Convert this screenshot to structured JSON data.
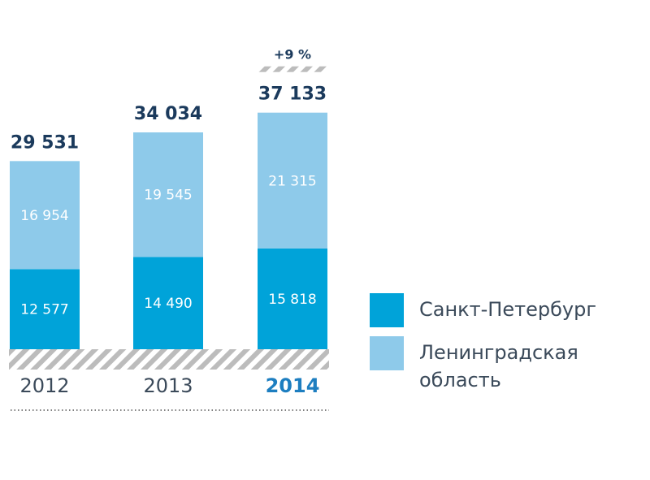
{
  "chart_data": {
    "type": "bar",
    "stacked": true,
    "categories": [
      "2012",
      "2013",
      "2014"
    ],
    "highlight_category": "2014",
    "series": [
      {
        "name": "Санкт-Петербург",
        "values": [
          12577,
          14490,
          15818
        ],
        "value_labels": [
          "12 577",
          "14 490",
          "15 818"
        ],
        "color": "#00a3d9"
      },
      {
        "name": "Ленинградская область",
        "values": [
          16954,
          19545,
          21315
        ],
        "value_labels": [
          "16 954",
          "19 545",
          "21 315"
        ],
        "color": "#8ecaea"
      }
    ],
    "totals": [
      29531,
      34034,
      37133
    ],
    "total_labels": [
      "29 531",
      "34 034",
      "37 133"
    ],
    "annotation": {
      "category": "2014",
      "text": "+9 %"
    },
    "legend": {
      "position": "right",
      "items": [
        {
          "lines": [
            "Санкт-Петербург"
          ],
          "color": "#00a3d9"
        },
        {
          "lines": [
            "Ленинградская",
            "область"
          ],
          "color": "#8ecaea"
        }
      ]
    },
    "colors": {
      "total_text": "#1b3a5c",
      "axis_text": "#3b4a5a",
      "highlight_text": "#1d7ec0",
      "hatch": "#bcbcbc"
    },
    "grid": false
  }
}
